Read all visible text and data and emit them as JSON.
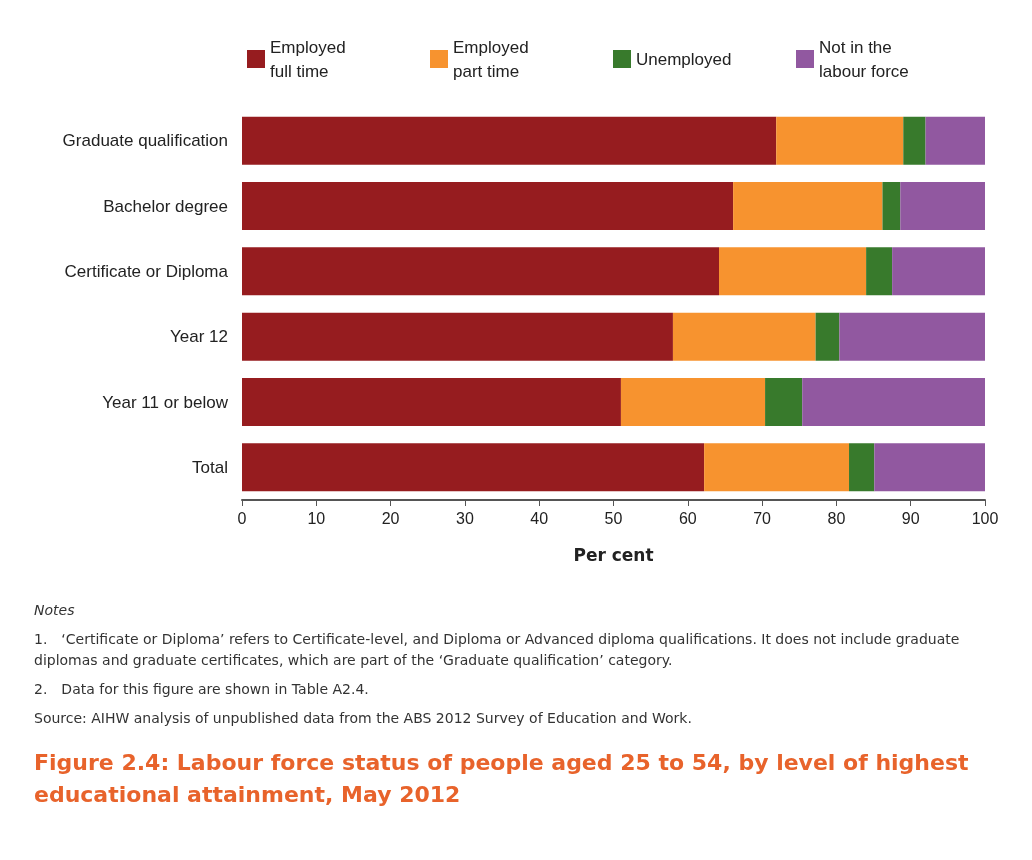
{
  "chart_data": {
    "type": "bar",
    "orientation": "horizontal",
    "stacked": true,
    "title": "Figure 2.4: Labour force status of people aged 25 to 54, by level of highest educational attainment, May 2012",
    "xlabel": "Per cent",
    "categories": [
      "Graduate qualification",
      "Bachelor degree",
      "Certificate or Diploma",
      "Year 12",
      "Year 11 or below",
      "Total"
    ],
    "series": [
      {
        "name": "Employed full time",
        "color": "#961c1f",
        "values": [
          71.9,
          66.1,
          64.2,
          58.0,
          51.0,
          62.2
        ]
      },
      {
        "name": "Employed part time",
        "color": "#f7932f",
        "values": [
          17.1,
          20.1,
          19.8,
          19.2,
          19.4,
          19.5
        ]
      },
      {
        "name": "Unemployed",
        "color": "#387a2c",
        "values": [
          3.0,
          2.4,
          3.5,
          3.2,
          5.0,
          3.4
        ]
      },
      {
        "name": "Not in the labour force",
        "color": "#9158a0",
        "values": [
          8.0,
          11.4,
          12.5,
          19.6,
          24.6,
          14.9
        ]
      }
    ],
    "xlim": [
      0,
      100
    ],
    "xticks": [
      0,
      10,
      20,
      30,
      40,
      50,
      60,
      70,
      80,
      90,
      100
    ],
    "grid": false,
    "legend": "top",
    "annotations": [
      "Notes",
      "1. ‘Certificate or Diploma’ refers to Certificate-level, and Diploma or Advanced diploma qualifications. It does not include graduate diplomas and graduate certificates, which are part of the ‘Graduate qualification’ category.",
      "2. Data for this figure are shown in Table A2.4.",
      "Source: AIHW analysis of unpublished data from the ABS 2012 Survey of Education and Work."
    ]
  }
}
